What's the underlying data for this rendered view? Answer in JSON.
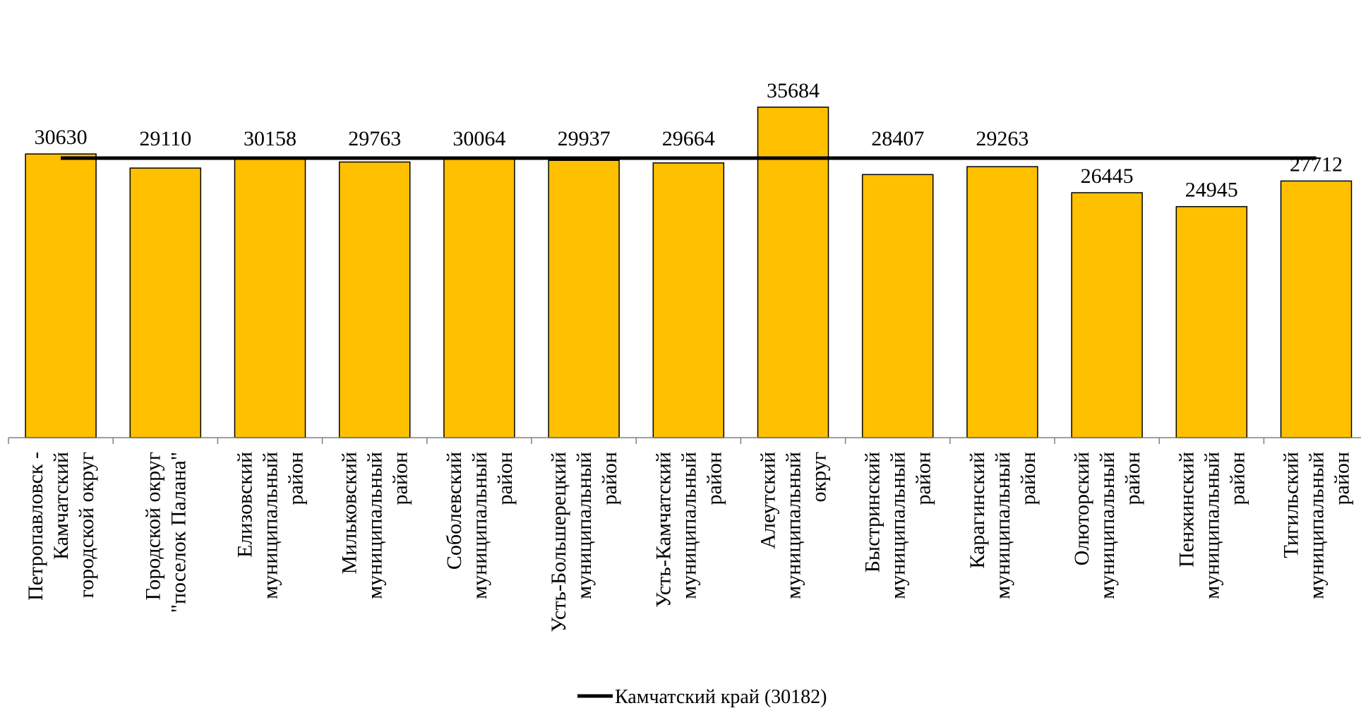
{
  "chart_data": {
    "type": "bar",
    "categories": [
      [
        "Петропавловск -",
        "Камчатский",
        "городской округ"
      ],
      [
        "Городской округ",
        "\"поселок Палана\""
      ],
      [
        "Елизовский",
        "муниципальный",
        "район"
      ],
      [
        "Мильковский",
        "муниципальный",
        "район"
      ],
      [
        "Соболевский",
        "муниципальный",
        "район"
      ],
      [
        "Усть-Большерецкий",
        "муниципальный",
        "район"
      ],
      [
        "Усть-Камчатский",
        "муниципальный",
        "район"
      ],
      [
        "Алеутский",
        "муниципальный",
        "округ"
      ],
      [
        "Быстринский",
        "муниципальный",
        "район"
      ],
      [
        "Карагинский",
        "муниципальный",
        "район"
      ],
      [
        "Олюторский",
        "муниципальный",
        "район"
      ],
      [
        "Пенжинский",
        "муниципальный",
        "район"
      ],
      [
        "Тигильский",
        "муниципальный",
        "район"
      ]
    ],
    "values": [
      30630,
      29110,
      30158,
      29763,
      30064,
      29937,
      29664,
      35684,
      28407,
      29263,
      26445,
      24945,
      27712
    ],
    "value_labels": [
      "30630",
      "29110",
      "30158",
      "29763",
      "30064",
      "29937",
      "29664",
      "35684",
      "28407",
      "29263",
      "26445",
      "24945",
      "27712"
    ],
    "reference_line": {
      "name": "Камчатский край (30182)",
      "value": 30182
    },
    "ylim": [
      0,
      35684
    ],
    "grid": false,
    "legend_position": "bottom-center",
    "colors": {
      "bar": "#FFC000",
      "bar_outline": "#000000",
      "line": "#000000"
    }
  }
}
